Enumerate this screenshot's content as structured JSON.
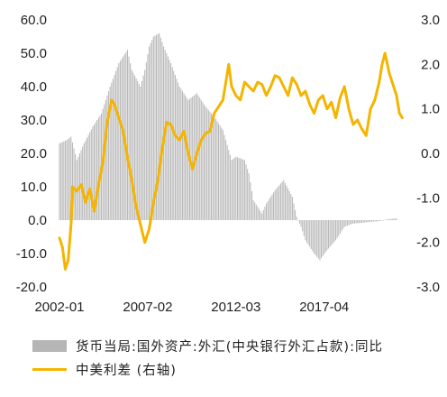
{
  "chart_data": {
    "type": "bar+line",
    "x_start": "2002-01",
    "x_end": "2021-06",
    "x_tick_labels": [
      "2002-01",
      "2007-02",
      "2012-03",
      "2017-04"
    ],
    "x_ticks": [
      "2002-01",
      "2007-02",
      "2012-03",
      "2017-04"
    ],
    "y_left": {
      "ylim": [
        -20,
        60
      ],
      "tick_labels": [
        "60.0",
        "50.0",
        "40.0",
        "30.0",
        "20.0",
        "10.0",
        "0.0",
        "-10.0",
        "-20.0"
      ]
    },
    "y_right": {
      "ylim": [
        -3,
        3
      ],
      "tick_labels": [
        "3.0",
        "2.0",
        "1.0",
        "0.0",
        "-1.0",
        "-2.0",
        "-3.0"
      ]
    },
    "series": [
      {
        "name": "货币当局:国外资产:外汇(中央银行外汇占款):同比",
        "type": "bar",
        "axis": "left",
        "color": "#b5b5b5",
        "points": [
          [
            "2002-01",
            23
          ],
          [
            "2002-06",
            24
          ],
          [
            "2002-09",
            25
          ],
          [
            "2003-01",
            18
          ],
          [
            "2003-06",
            23
          ],
          [
            "2003-12",
            28
          ],
          [
            "2004-06",
            32
          ],
          [
            "2004-12",
            40
          ],
          [
            "2005-06",
            47
          ],
          [
            "2005-12",
            51
          ],
          [
            "2006-03",
            45
          ],
          [
            "2006-09",
            40
          ],
          [
            "2006-12",
            45
          ],
          [
            "2007-03",
            52
          ],
          [
            "2007-06",
            55
          ],
          [
            "2007-10",
            56
          ],
          [
            "2008-01",
            52
          ],
          [
            "2008-06",
            47
          ],
          [
            "2008-12",
            40
          ],
          [
            "2009-06",
            36
          ],
          [
            "2009-12",
            38
          ],
          [
            "2010-06",
            34
          ],
          [
            "2010-12",
            31
          ],
          [
            "2011-06",
            27
          ],
          [
            "2011-12",
            18
          ],
          [
            "2012-03",
            19
          ],
          [
            "2012-09",
            18
          ],
          [
            "2012-12",
            14
          ],
          [
            "2013-03",
            6
          ],
          [
            "2013-09",
            2
          ],
          [
            "2013-12",
            5
          ],
          [
            "2014-06",
            9
          ],
          [
            "2014-12",
            12
          ],
          [
            "2015-06",
            7
          ],
          [
            "2015-09",
            1
          ],
          [
            "2015-12",
            -2
          ],
          [
            "2016-03",
            -6
          ],
          [
            "2016-09",
            -10
          ],
          [
            "2017-01",
            -12
          ],
          [
            "2017-06",
            -9
          ],
          [
            "2017-12",
            -6
          ],
          [
            "2018-06",
            -2
          ],
          [
            "2018-12",
            -1
          ],
          [
            "2019-06",
            -0.8
          ],
          [
            "2019-12",
            -0.5
          ],
          [
            "2020-06",
            -0.3
          ],
          [
            "2020-12",
            0.3
          ],
          [
            "2021-06",
            0.5
          ]
        ]
      },
      {
        "name": "中美利差 (右轴)",
        "type": "line",
        "axis": "right",
        "color": "#f4b400",
        "points": [
          [
            "2002-01",
            -1.9
          ],
          [
            "2002-03",
            -2.1
          ],
          [
            "2002-05",
            -2.6
          ],
          [
            "2002-07",
            -2.4
          ],
          [
            "2002-09",
            -1.6
          ],
          [
            "2002-10",
            -0.75
          ],
          [
            "2003-01",
            -0.85
          ],
          [
            "2003-04",
            -0.7
          ],
          [
            "2003-07",
            -1.1
          ],
          [
            "2003-10",
            -0.8
          ],
          [
            "2004-01",
            -1.3
          ],
          [
            "2004-04",
            -0.7
          ],
          [
            "2004-07",
            -0.2
          ],
          [
            "2004-10",
            0.7
          ],
          [
            "2005-01",
            1.2
          ],
          [
            "2005-03",
            1.1
          ],
          [
            "2005-06",
            0.8
          ],
          [
            "2005-09",
            0.5
          ],
          [
            "2005-12",
            -0.1
          ],
          [
            "2006-03",
            -0.6
          ],
          [
            "2006-06",
            -1.2
          ],
          [
            "2006-09",
            -1.6
          ],
          [
            "2006-12",
            -2.0
          ],
          [
            "2007-03",
            -1.7
          ],
          [
            "2007-06",
            -1.1
          ],
          [
            "2007-09",
            -0.6
          ],
          [
            "2007-12",
            0.1
          ],
          [
            "2008-03",
            0.7
          ],
          [
            "2008-06",
            0.65
          ],
          [
            "2008-09",
            0.4
          ],
          [
            "2008-12",
            0.3
          ],
          [
            "2009-03",
            0.5
          ],
          [
            "2009-06",
            0.0
          ],
          [
            "2009-09",
            -0.35
          ],
          [
            "2009-12",
            0.0
          ],
          [
            "2010-03",
            0.3
          ],
          [
            "2010-06",
            0.45
          ],
          [
            "2010-09",
            0.5
          ],
          [
            "2010-12",
            0.9
          ],
          [
            "2011-06",
            1.2
          ],
          [
            "2011-10",
            2.0
          ],
          [
            "2011-12",
            1.5
          ],
          [
            "2012-03",
            1.3
          ],
          [
            "2012-06",
            1.2
          ],
          [
            "2012-09",
            1.6
          ],
          [
            "2012-12",
            1.5
          ],
          [
            "2013-03",
            1.4
          ],
          [
            "2013-06",
            1.6
          ],
          [
            "2013-09",
            1.55
          ],
          [
            "2013-12",
            1.3
          ],
          [
            "2014-03",
            1.5
          ],
          [
            "2014-06",
            1.75
          ],
          [
            "2014-09",
            1.7
          ],
          [
            "2014-12",
            1.5
          ],
          [
            "2015-03",
            1.3
          ],
          [
            "2015-06",
            1.7
          ],
          [
            "2015-09",
            1.55
          ],
          [
            "2015-12",
            1.3
          ],
          [
            "2016-03",
            1.4
          ],
          [
            "2016-06",
            1.1
          ],
          [
            "2016-09",
            0.9
          ],
          [
            "2016-12",
            1.2
          ],
          [
            "2017-03",
            1.3
          ],
          [
            "2017-06",
            1.0
          ],
          [
            "2017-09",
            1.15
          ],
          [
            "2017-12",
            0.8
          ],
          [
            "2018-03",
            1.25
          ],
          [
            "2018-06",
            1.5
          ],
          [
            "2018-09",
            1.0
          ],
          [
            "2018-12",
            0.65
          ],
          [
            "2019-03",
            0.75
          ],
          [
            "2019-06",
            0.55
          ],
          [
            "2019-09",
            0.4
          ],
          [
            "2019-12",
            1.0
          ],
          [
            "2020-03",
            1.2
          ],
          [
            "2020-06",
            1.6
          ],
          [
            "2020-08",
            2.0
          ],
          [
            "2020-10",
            2.25
          ],
          [
            "2021-01",
            1.8
          ],
          [
            "2021-04",
            1.5
          ],
          [
            "2021-06",
            1.3
          ],
          [
            "2021-08",
            0.9
          ],
          [
            "2021-10",
            0.8
          ]
        ]
      }
    ],
    "legend": {
      "placement": "bottom",
      "items": [
        "货币当局:国外资产:外汇(中央银行外汇占款):同比",
        "中美利差 (右轴)"
      ]
    },
    "grid": false,
    "colors": {
      "bar": "#b5b5b5",
      "line": "#f4b400",
      "text": "#222222"
    }
  }
}
